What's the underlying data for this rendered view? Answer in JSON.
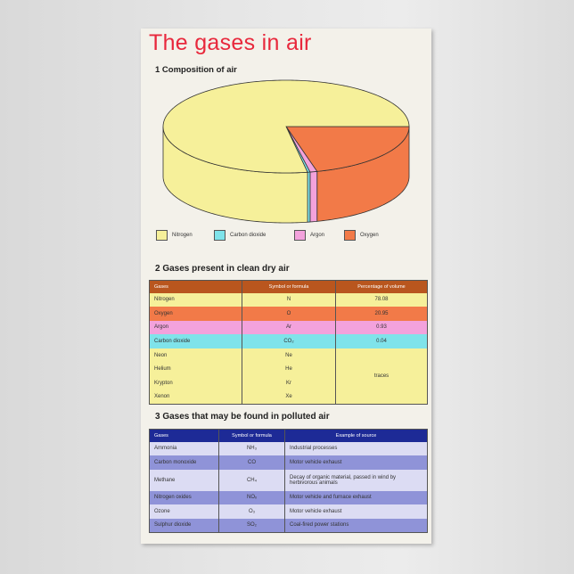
{
  "title": "The gases in air",
  "section1": {
    "heading": "1 Composition of air"
  },
  "chart_data": {
    "type": "pie",
    "title": "1 Composition of air",
    "style": "3d",
    "slices": [
      {
        "name": "Oxygen",
        "value": 20.95,
        "color": "#f27a48"
      },
      {
        "name": "Argon",
        "value": 0.93,
        "color": "#f3a2dc"
      },
      {
        "name": "Carbon dioxide",
        "value": 0.04,
        "color": "#7fe3ea"
      },
      {
        "name": "Nitrogen",
        "value": 78.08,
        "color": "#f6f09a"
      }
    ],
    "legend": [
      "Nitrogen",
      "Carbon dioxide",
      "Argon",
      "Oxygen"
    ],
    "legend_placement": "bottom"
  },
  "section2": {
    "heading": "2 Gases present in clean dry air",
    "header_color": "#b9561e",
    "columns": [
      "Gases",
      "Symbol or formula",
      "Percentage of volume"
    ],
    "rows": [
      {
        "gas": "Nitrogen",
        "formula": "N",
        "pct": "78.08",
        "color": "#f6f09a"
      },
      {
        "gas": "Oxygen",
        "formula": "O",
        "pct": "20.95",
        "color": "#f27a48"
      },
      {
        "gas": "Argon",
        "formula": "Ar",
        "pct": "0.93",
        "color": "#f3a2dc"
      },
      {
        "gas": "Carbon dioxide",
        "formula": "CO₂",
        "pct": "0.04",
        "color": "#7fe3ea"
      },
      {
        "gas": "Neon",
        "formula": "Ne",
        "color": "#f6f09a"
      },
      {
        "gas": "Helium",
        "formula": "He",
        "color": "#f6f09a"
      },
      {
        "gas": "Krypton",
        "formula": "Kr",
        "color": "#f6f09a"
      },
      {
        "gas": "Xenon",
        "formula": "Xe",
        "color": "#f6f09a"
      }
    ],
    "traces_label": "traces"
  },
  "section3": {
    "heading": "3 Gases that may be found in polluted air",
    "header_color": "#1d2a96",
    "columns": [
      "Gases",
      "Symbol or formula",
      "Example of source"
    ],
    "rows": [
      {
        "gas": "Ammonia",
        "formula": "NH₃",
        "source": "Industrial processes"
      },
      {
        "gas": "Carbon monoxide",
        "formula": "CO",
        "source": "Motor vehicle exhaust"
      },
      {
        "gas": "Methane",
        "formula": "CH₄",
        "source": "Decay of organic material, passed in wind by herbivorous animals"
      },
      {
        "gas": "Nitrogen oxides",
        "formula": "NOₓ",
        "source": "Motor vehicle and furnace exhaust"
      },
      {
        "gas": "Ozone",
        "formula": "O₃",
        "source": "Motor vehicle exhaust"
      },
      {
        "gas": "Sulphur dioxide",
        "formula": "SO₂",
        "source": "Coal-fired power stations"
      }
    ],
    "row_colors": [
      "#dcdcf3",
      "#8f93d8"
    ]
  }
}
